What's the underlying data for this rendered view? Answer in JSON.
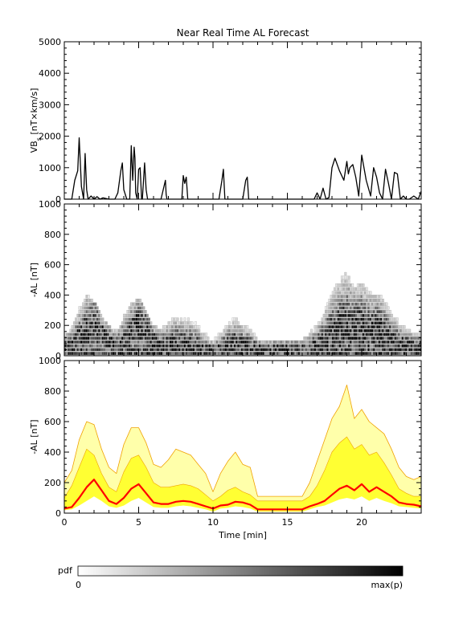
{
  "title": "Near Real Time AL Forecast",
  "colors": {
    "axis": "#000000",
    "median": "#ff0000",
    "band_outer": "#ffffaa",
    "band_inner": "#ffff33",
    "envelope": "#f0a000",
    "pdf_dark": "#000000"
  },
  "colorbar": {
    "label": "pdf",
    "min_label": "0",
    "max_label": "max(p)"
  },
  "chart_data": [
    {
      "type": "line",
      "name": "vbs-panel",
      "ylabel_main": "VB",
      "ylabel_sub": "s",
      "ylabel_rest": " [nT×km/s]",
      "ylim": [
        0,
        5000
      ],
      "yticks": [
        0,
        1000,
        2000,
        3000,
        4000,
        5000
      ],
      "xlim": [
        0,
        24
      ],
      "xticks": [
        0,
        5,
        10,
        15,
        20
      ],
      "x": [
        0.0,
        0.5,
        0.7,
        0.9,
        1.0,
        1.15,
        1.3,
        1.4,
        1.5,
        1.6,
        1.8,
        2.0,
        2.2,
        2.4,
        2.6,
        3.0,
        3.4,
        3.6,
        3.8,
        3.9,
        4.0,
        4.2,
        4.4,
        4.5,
        4.6,
        4.7,
        4.75,
        4.8,
        4.9,
        5.0,
        5.1,
        5.2,
        5.25,
        5.4,
        5.5,
        5.6,
        5.7,
        5.8,
        6.0,
        6.5,
        6.8,
        6.85,
        6.9,
        7.2,
        7.9,
        8.0,
        8.1,
        8.2,
        8.3,
        8.4,
        9.0,
        10.4,
        10.6,
        10.7,
        10.8,
        11.0,
        12.0,
        12.2,
        12.3,
        12.4,
        12.6,
        13.0,
        16.5,
        16.8,
        17.0,
        17.2,
        17.4,
        17.6,
        17.8,
        18.0,
        18.2,
        18.5,
        18.8,
        19.0,
        19.1,
        19.2,
        19.4,
        19.6,
        19.8,
        20.0,
        20.3,
        20.6,
        20.8,
        21.0,
        21.2,
        21.4,
        21.6,
        21.8,
        22.0,
        22.2,
        22.4,
        22.6,
        22.8,
        23.0,
        23.2,
        23.5,
        23.8,
        24.0
      ],
      "y": [
        0,
        0,
        600,
        900,
        1950,
        400,
        0,
        1450,
        300,
        0,
        100,
        0,
        80,
        0,
        40,
        0,
        0,
        200,
        900,
        1150,
        300,
        0,
        0,
        1700,
        600,
        1650,
        1300,
        200,
        0,
        950,
        1000,
        0,
        0,
        1150,
        300,
        0,
        0,
        0,
        0,
        0,
        600,
        150,
        0,
        0,
        0,
        750,
        500,
        700,
        0,
        0,
        0,
        0,
        600,
        950,
        0,
        0,
        0,
        600,
        700,
        0,
        0,
        0,
        0,
        0,
        200,
        0,
        350,
        0,
        50,
        1000,
        1300,
        900,
        600,
        1200,
        800,
        1000,
        1100,
        700,
        100,
        1400,
        600,
        100,
        1000,
        700,
        200,
        0,
        950,
        500,
        0,
        850,
        800,
        0,
        100,
        0,
        0,
        100,
        0,
        250
      ]
    },
    {
      "type": "heatmap",
      "name": "pdf-panel",
      "ylabel": "-AL [nT]",
      "ylim": [
        0,
        1000
      ],
      "yticks": [
        0,
        200,
        400,
        600,
        800,
        1000
      ],
      "xlim": [
        0,
        24
      ],
      "xticks": [
        0,
        5,
        10,
        15,
        20
      ],
      "x": [
        0,
        0.5,
        1,
        1.5,
        2,
        2.5,
        3,
        3.5,
        4,
        4.5,
        5,
        5.5,
        6,
        6.5,
        7,
        7.5,
        8,
        8.5,
        9,
        9.5,
        10,
        10.5,
        11,
        11.5,
        12,
        12.5,
        13,
        13.5,
        14,
        14.5,
        15,
        15.5,
        16,
        16.5,
        17,
        17.5,
        18,
        18.5,
        19,
        19.5,
        20,
        20.5,
        21,
        21.5,
        22,
        22.5,
        23,
        23.5,
        24
      ],
      "center": [
        40,
        60,
        100,
        160,
        200,
        150,
        90,
        60,
        90,
        150,
        190,
        160,
        90,
        60,
        60,
        70,
        70,
        70,
        60,
        40,
        30,
        50,
        60,
        70,
        60,
        50,
        40,
        40,
        40,
        40,
        40,
        40,
        40,
        50,
        60,
        90,
        140,
        170,
        190,
        170,
        180,
        150,
        170,
        140,
        100,
        70,
        60,
        50,
        50
      ],
      "spread": [
        150,
        200,
        320,
        400,
        360,
        260,
        200,
        160,
        260,
        340,
        380,
        300,
        200,
        180,
        250,
        280,
        260,
        240,
        200,
        150,
        100,
        160,
        220,
        260,
        230,
        200,
        110,
        110,
        110,
        110,
        110,
        110,
        110,
        150,
        220,
        320,
        420,
        500,
        550,
        450,
        480,
        420,
        400,
        380,
        300,
        220,
        180,
        160,
        170
      ]
    },
    {
      "type": "area",
      "name": "quantile-panel",
      "ylabel": "-AL [nT]",
      "ylim": [
        0,
        1000
      ],
      "yticks": [
        0,
        200,
        400,
        600,
        800,
        1000
      ],
      "xlim": [
        0,
        24
      ],
      "xticks": [
        0,
        5,
        10,
        15,
        20
      ],
      "xlabel": "Time [min]",
      "x": [
        0,
        0.5,
        1,
        1.5,
        2,
        2.5,
        3,
        3.5,
        4,
        4.5,
        5,
        5.5,
        6,
        6.5,
        7,
        7.5,
        8,
        8.5,
        9,
        9.5,
        10,
        10.5,
        11,
        11.5,
        12,
        12.5,
        13,
        13.5,
        14,
        14.5,
        15,
        15.5,
        16,
        16.5,
        17,
        17.5,
        18,
        18.5,
        19,
        19.5,
        20,
        20.5,
        21,
        21.5,
        22,
        22.5,
        23,
        23.5,
        24
      ],
      "median": [
        30,
        40,
        100,
        170,
        220,
        150,
        80,
        60,
        100,
        160,
        190,
        130,
        70,
        60,
        60,
        75,
        80,
        75,
        60,
        45,
        30,
        50,
        55,
        75,
        70,
        55,
        25,
        25,
        25,
        25,
        25,
        25,
        25,
        45,
        60,
        80,
        120,
        160,
        180,
        150,
        190,
        140,
        170,
        140,
        110,
        70,
        60,
        55,
        45
      ],
      "inner_upper": [
        100,
        180,
        300,
        420,
        380,
        260,
        170,
        140,
        270,
        360,
        380,
        300,
        200,
        170,
        170,
        180,
        190,
        180,
        160,
        120,
        80,
        110,
        150,
        170,
        140,
        120,
        80,
        80,
        80,
        80,
        80,
        80,
        80,
        110,
        180,
        280,
        400,
        460,
        500,
        420,
        450,
        380,
        400,
        330,
        250,
        160,
        130,
        110,
        110
      ],
      "outer_upper": [
        200,
        280,
        480,
        600,
        580,
        420,
        300,
        260,
        450,
        560,
        560,
        460,
        320,
        300,
        350,
        420,
        400,
        380,
        320,
        260,
        140,
        260,
        340,
        400,
        320,
        300,
        110,
        110,
        110,
        110,
        110,
        110,
        110,
        200,
        340,
        480,
        620,
        700,
        840,
        620,
        680,
        600,
        560,
        520,
        420,
        300,
        240,
        220,
        240
      ],
      "lower": [
        20,
        25,
        50,
        80,
        110,
        80,
        45,
        35,
        50,
        80,
        100,
        70,
        40,
        35,
        35,
        45,
        50,
        45,
        35,
        25,
        10,
        30,
        35,
        45,
        40,
        30,
        10,
        10,
        10,
        10,
        10,
        10,
        10,
        25,
        40,
        50,
        70,
        90,
        100,
        90,
        110,
        80,
        100,
        80,
        65,
        45,
        40,
        35,
        30
      ]
    }
  ]
}
